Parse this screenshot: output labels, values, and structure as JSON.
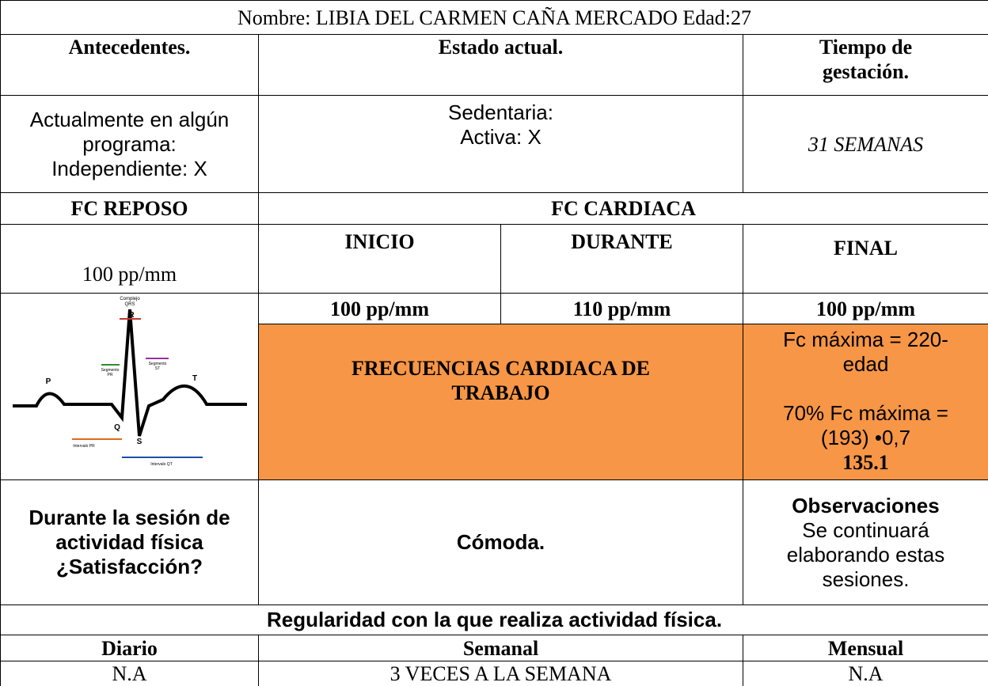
{
  "title": "Nombre: LIBIA DEL CARMEN CAÑA MERCADO Edad:27",
  "headers": {
    "antecedentes": "Antecedentes.",
    "estado": "Estado actual.",
    "tiempo": [
      "Tiempo de",
      "gestación."
    ]
  },
  "current": {
    "antecedentes": [
      "Actualmente en algún",
      "programa:",
      "Independiente: X"
    ],
    "estado": [
      "Sedentaria:",
      "Activa: X"
    ],
    "tiempo": "31 SEMANAS"
  },
  "fc_reposo": {
    "label": "FC REPOSO",
    "value": "100 pp/mm"
  },
  "fc_cardiaca": {
    "label": "FC CARDIACA",
    "columns": [
      "INICIO",
      "DURANTE",
      "FINAL"
    ],
    "values": [
      "100 pp/mm",
      "110 pp/mm",
      "100 pp/mm"
    ]
  },
  "ecg": {
    "qrs": [
      "Complejo",
      "QRS"
    ],
    "r": "R",
    "p": "P",
    "t": "T",
    "q": "Q",
    "s": "S",
    "seg_pr": [
      "Segmento",
      "PR"
    ],
    "seg_st": [
      "Segmento",
      "ST"
    ],
    "int_pr": "Intervalo PR",
    "int_qt": "Intervalo QT"
  },
  "trabajo": {
    "title": [
      "FRECUENCIAS CARDIACA DE",
      "TRABAJO"
    ],
    "formula": [
      "Fc máxima = 220-",
      "edad",
      "70% Fc máxima =",
      "(193) •0,7"
    ],
    "result": "135.1"
  },
  "satisfaccion": {
    "question": [
      "Durante la sesión de",
      "actividad física",
      "¿Satisfacción?"
    ],
    "answer": "Cómoda.",
    "obs_title": "Observaciones",
    "obs": [
      "Se continuará",
      "elaborando estas",
      "sesiones."
    ]
  },
  "regularidad": {
    "title": "Regularidad con la que realiza actividad física.",
    "headers": [
      "Diario",
      "Semanal",
      "Mensual"
    ],
    "values": [
      "N.A",
      "3 VECES A LA SEMANA",
      "N.A"
    ]
  }
}
